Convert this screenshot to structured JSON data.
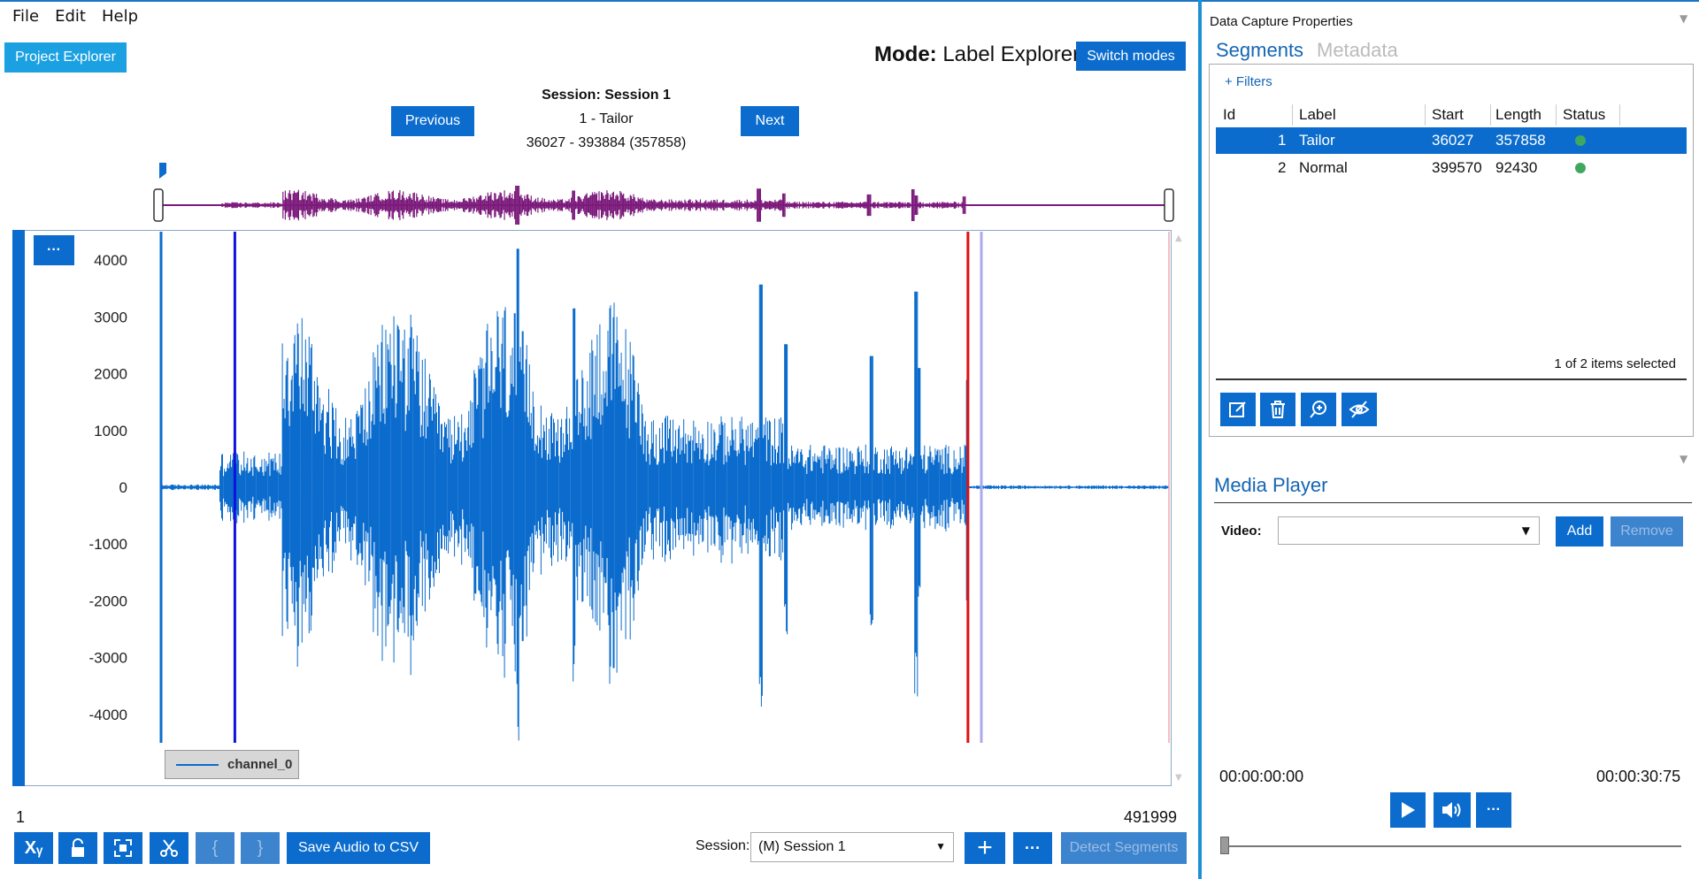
{
  "menu": [
    "File",
    "Edit",
    "Help"
  ],
  "project_explorer_label": "Project Explorer",
  "mode": {
    "prefix": "Mode:",
    "value": "Label Explorer"
  },
  "switch_modes_label": "Switch modes",
  "session_title": "Session: Session 1",
  "segment_label": "1 - Tailor",
  "segment_range": "36027 - 393884 (357858)",
  "nav": {
    "previous": "Previous",
    "next": "Next"
  },
  "chart_data": {
    "type": "line",
    "series": [
      {
        "name": "channel_0",
        "color": "#0b6ccd"
      }
    ],
    "yticks": [
      "4000",
      "3000",
      "2000",
      "1000",
      "0",
      "-1000",
      "-2000",
      "-3000",
      "-4000"
    ],
    "ylim": [
      -4500,
      4500
    ],
    "xlim": [
      1,
      491999
    ],
    "markers": {
      "segment_start": 36027,
      "segment_end": 393884
    },
    "grid": false,
    "legend": "bottom-left"
  },
  "chart_menu_label": "···",
  "x_range": {
    "start": "1",
    "end": "491999"
  },
  "toolbar": {
    "xy_label": "Xᵧ",
    "bracket_open": "{",
    "bracket_close": "}",
    "save_audio": "Save Audio to CSV"
  },
  "session_select": {
    "label": "Session:",
    "value": "(M) Session 1"
  },
  "detect_segments_label": "Detect Segments",
  "add_label": "+",
  "more_label": "···",
  "panel": {
    "title": "Data Capture Properties",
    "tabs": [
      "Segments",
      "Metadata"
    ],
    "filters_label": "+ Filters",
    "columns": [
      "Id",
      "Label",
      "Start",
      "Length",
      "Status"
    ],
    "rows": [
      {
        "id": "1",
        "label": "Tailor",
        "start": "36027",
        "length": "357858",
        "status": "ok"
      },
      {
        "id": "2",
        "label": "Normal",
        "start": "399570",
        "length": "92430",
        "status": "ok"
      }
    ],
    "selection_text": "1 of 2 items selected"
  },
  "media": {
    "title": "Media Player",
    "video_label": "Video:",
    "add": "Add",
    "remove": "Remove",
    "time_start": "00:00:00:00",
    "time_end": "00:00:30:75"
  },
  "colors": {
    "accent": "#0b6ccd",
    "overview_wave": "#7b1a7b",
    "segment_start": "#1111dd",
    "segment_end": "#e01010",
    "status_ok": "#3ea95e"
  }
}
